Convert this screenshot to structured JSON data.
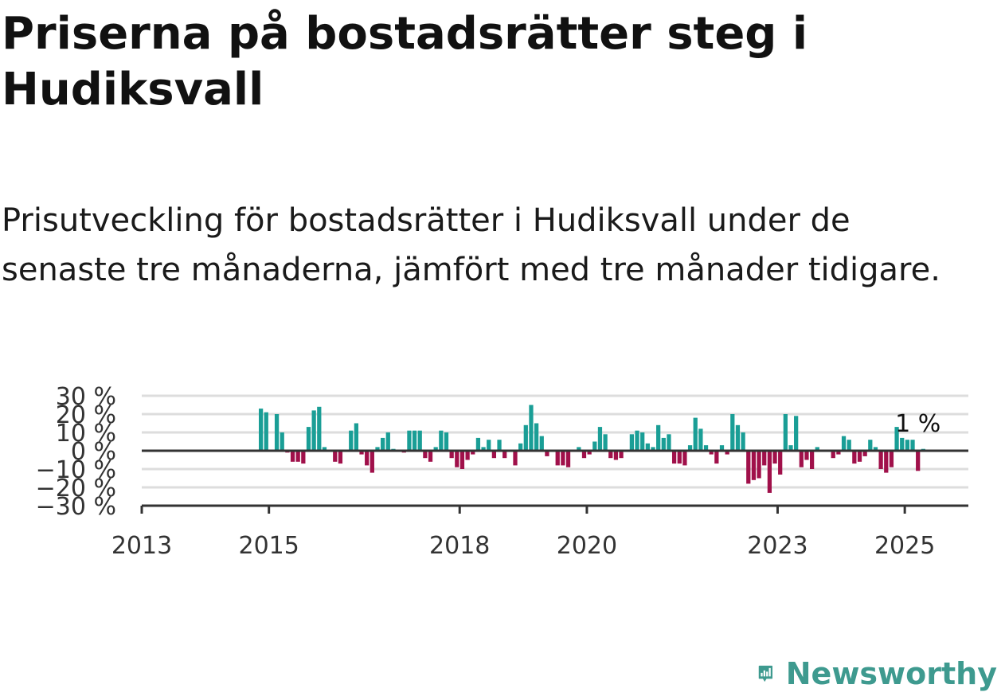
{
  "title": "Priserna på bostadsrätter steg i Hudiksvall",
  "subtitle": "Prisutveckling för bostadsrätter i Hudiksvall under de senaste tre månaderna, jämfört med tre månader tidigare.",
  "brand": {
    "name": "Newsworthy",
    "logo_icon": "newsworthy-logo-icon",
    "color": "#3e9a8f"
  },
  "colors": {
    "positive": "#1a9e96",
    "negative": "#a0104a",
    "gridline": "#dddddd",
    "axis": "#333333"
  },
  "chart_data": {
    "type": "bar",
    "title": "",
    "xlabel": "",
    "ylabel": "",
    "ylim": [
      -30,
      30
    ],
    "y_ticks": [
      30,
      20,
      10,
      0,
      -10,
      -20,
      -30
    ],
    "y_tick_labels": [
      "30 %",
      "20 %",
      "10 %",
      "0 %",
      "−10 %",
      "−20 %",
      "−30 %"
    ],
    "x_ticks": [
      "2013",
      "2015",
      "2018",
      "2020",
      "2023",
      "2025"
    ],
    "xlim": [
      "2013-01",
      "2025-12"
    ],
    "grid": true,
    "annotation": {
      "text": "1 %",
      "x": "2025-01"
    },
    "x": [
      "2014-11",
      "2014-12",
      "2015-01",
      "2015-02",
      "2015-03",
      "2015-04",
      "2015-05",
      "2015-06",
      "2015-07",
      "2015-08",
      "2015-09",
      "2015-10",
      "2015-11",
      "2015-12",
      "2016-01",
      "2016-02",
      "2016-03",
      "2016-04",
      "2016-05",
      "2016-06",
      "2016-07",
      "2016-08",
      "2016-09",
      "2016-10",
      "2016-11",
      "2016-12",
      "2017-01",
      "2017-02",
      "2017-03",
      "2017-04",
      "2017-05",
      "2017-06",
      "2017-07",
      "2017-08",
      "2017-09",
      "2017-10",
      "2017-11",
      "2017-12",
      "2018-01",
      "2018-02",
      "2018-03",
      "2018-04",
      "2018-05",
      "2018-06",
      "2018-07",
      "2018-08",
      "2018-09",
      "2018-10",
      "2018-11",
      "2018-12",
      "2019-01",
      "2019-02",
      "2019-03",
      "2019-04",
      "2019-05",
      "2019-06",
      "2019-07",
      "2019-08",
      "2019-09",
      "2019-10",
      "2019-11",
      "2019-12",
      "2020-01",
      "2020-02",
      "2020-03",
      "2020-04",
      "2020-05",
      "2020-06",
      "2020-07",
      "2020-08",
      "2020-09",
      "2020-10",
      "2020-11",
      "2020-12",
      "2021-01",
      "2021-02",
      "2021-03",
      "2021-04",
      "2021-05",
      "2021-06",
      "2021-07",
      "2021-08",
      "2021-09",
      "2021-10",
      "2021-11",
      "2021-12",
      "2022-01",
      "2022-02",
      "2022-03",
      "2022-04",
      "2022-05",
      "2022-06",
      "2022-07",
      "2022-08",
      "2022-09",
      "2022-10",
      "2022-11",
      "2022-12",
      "2023-01",
      "2023-02",
      "2023-03",
      "2023-04",
      "2023-05",
      "2023-06",
      "2023-07",
      "2023-08",
      "2023-09",
      "2023-10",
      "2023-11",
      "2023-12",
      "2024-01",
      "2024-02",
      "2024-03",
      "2024-04",
      "2024-05",
      "2024-06",
      "2024-07",
      "2024-08",
      "2024-09",
      "2024-10",
      "2024-11",
      "2024-12",
      "2025-01",
      "2025-02",
      "2025-03",
      "2025-04"
    ],
    "values": [
      23,
      21,
      0,
      20,
      10,
      -1,
      -6,
      -6,
      -7,
      13,
      22,
      24,
      2,
      0,
      -6,
      -7,
      0,
      11,
      15,
      -2,
      -8,
      -12,
      2,
      7,
      10,
      1,
      0,
      -1,
      11,
      11,
      11,
      -4,
      -6,
      2,
      11,
      10,
      -4,
      -9,
      -10,
      -5,
      -2,
      7,
      2,
      6,
      -4,
      6,
      -4,
      0,
      -8,
      4,
      14,
      25,
      15,
      8,
      -3,
      0,
      -8,
      -8,
      -9,
      0,
      2,
      -4,
      -2,
      5,
      13,
      9,
      -4,
      -5,
      -4,
      0,
      9,
      11,
      10,
      4,
      2,
      14,
      7,
      9,
      -7,
      -7,
      -8,
      3,
      18,
      12,
      3,
      -2,
      -7,
      3,
      -2,
      20,
      14,
      10,
      -18,
      -16,
      -15,
      -8,
      -23,
      -7,
      -13,
      20,
      3,
      19,
      -9,
      -5,
      -10,
      2,
      0,
      0,
      -4,
      -2,
      8,
      6,
      -7,
      -6,
      -3,
      6,
      2,
      -10,
      -12,
      -9,
      13,
      7,
      6,
      6,
      -11,
      1
    ]
  }
}
